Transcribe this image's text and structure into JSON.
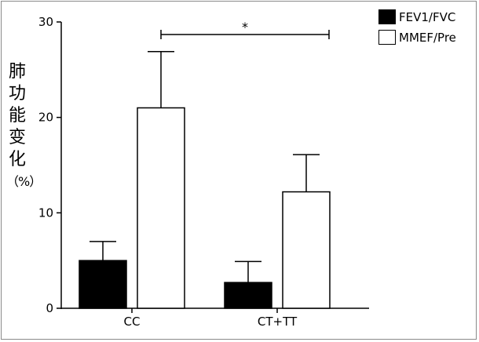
{
  "chart_data": {
    "type": "bar",
    "categories": [
      "CC",
      "CT+TT"
    ],
    "ylabel_chars": [
      "肺",
      "功",
      "能",
      "变",
      "化",
      "（%）"
    ],
    "xlabel": "",
    "ylim": [
      0,
      30
    ],
    "yticks": [
      0,
      10,
      20,
      30
    ],
    "series": [
      {
        "name": "FEV1/FVC",
        "color": "#000000",
        "fill": "#000000",
        "values": [
          5.0,
          2.7
        ],
        "errors": [
          2.0,
          2.2
        ]
      },
      {
        "name": "MMEF/Pre",
        "color": "#000000",
        "fill": "#ffffff",
        "values": [
          21.0,
          12.2
        ],
        "errors": [
          5.9,
          3.9
        ]
      }
    ],
    "significance": {
      "label": "*",
      "between": [
        "CC",
        "CT+TT"
      ]
    },
    "grid": false,
    "legend_position": "top-right"
  }
}
